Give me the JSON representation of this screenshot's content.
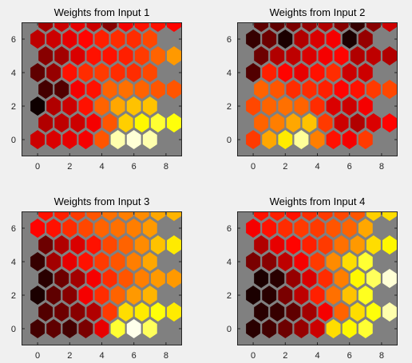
{
  "window": {
    "background": "#f0f0f0"
  },
  "chart_data": [
    {
      "type": "heatmap",
      "title": "Weights from Input 1",
      "xlabel": "",
      "ylabel": "",
      "xlim": [
        -1,
        9
      ],
      "ylim": [
        -1,
        7
      ],
      "xticks": [
        "0",
        "2",
        "4",
        "6",
        "8"
      ],
      "yticks": [
        "0",
        "2",
        "4",
        "6"
      ],
      "grid": false,
      "axes_background": "#808080",
      "colormap": "hot",
      "cells": [
        [
          0.3,
          0.32,
          0.34,
          0.36,
          0.5,
          0.92,
          0.96,
          0.92
        ],
        [
          0.26,
          0.28,
          0.3,
          0.36,
          0.5,
          0.68,
          0.74,
          0.8,
          0.76
        ],
        [
          0.02,
          0.26,
          0.3,
          0.4,
          0.52,
          0.62,
          0.66,
          0.66
        ],
        [
          0.1,
          0.12,
          0.36,
          0.4,
          0.52,
          0.54,
          0.52,
          0.5,
          0.5
        ],
        [
          0.14,
          0.22,
          0.4,
          0.44,
          0.46,
          0.44,
          0.44,
          0.48
        ],
        [
          0.2,
          0.24,
          0.32,
          0.4,
          0.4,
          0.42,
          0.46,
          0.52,
          0.6
        ],
        [
          0.28,
          0.3,
          0.34,
          0.38,
          0.42,
          0.44,
          0.44,
          0.48
        ],
        [
          0.24,
          0.3,
          0.34,
          0.3,
          0.2,
          0.36,
          0.4,
          0.4,
          0.38
        ]
      ]
    },
    {
      "type": "heatmap",
      "title": "Weights from Input 2",
      "xlabel": "",
      "ylabel": "",
      "xlim": [
        -1,
        9
      ],
      "ylim": [
        -1,
        7
      ],
      "xticks": [
        "0",
        "2",
        "4",
        "6",
        "8"
      ],
      "yticks": [
        "0",
        "2",
        "4",
        "6"
      ],
      "grid": false,
      "axes_background": "#808080",
      "colormap": "hot",
      "cells": [
        [
          0.46,
          0.62,
          0.72,
          0.9,
          0.56,
          0.4,
          0.36,
          0.46
        ],
        [
          0.52,
          0.56,
          0.62,
          0.66,
          0.46,
          0.3,
          0.26,
          0.32,
          0.38
        ],
        [
          0.48,
          0.52,
          0.54,
          0.52,
          0.44,
          0.32,
          0.3,
          0.36
        ],
        [
          0.52,
          0.5,
          0.44,
          0.44,
          0.42,
          0.38,
          0.4,
          0.46,
          0.48
        ],
        [
          0.12,
          0.42,
          0.38,
          0.34,
          0.4,
          0.44,
          0.3,
          0.3
        ],
        [
          0.16,
          0.26,
          0.28,
          0.32,
          0.36,
          0.38,
          0.26,
          0.28,
          0.26
        ],
        [
          0.08,
          0.16,
          0.04,
          0.26,
          0.32,
          0.36,
          0.04,
          0.22
        ],
        [
          0.14,
          0.14,
          0.18,
          0.22,
          0.26,
          0.2,
          0.08,
          0.2,
          0.3
        ]
      ]
    },
    {
      "type": "heatmap",
      "title": "Weights from Input 3",
      "xlabel": "",
      "ylabel": "",
      "xlim": [
        -1,
        9
      ],
      "ylim": [
        -1,
        7
      ],
      "xticks": [
        "0",
        "2",
        "4",
        "6",
        "8"
      ],
      "yticks": [
        "0",
        "2",
        "4",
        "6"
      ],
      "grid": false,
      "axes_background": "#808080",
      "colormap": "hot",
      "cells": [
        [
          0.1,
          0.14,
          0.1,
          0.18,
          0.34,
          0.8,
          0.98,
          0.84
        ],
        [
          0.12,
          0.16,
          0.2,
          0.26,
          0.46,
          0.7,
          0.72,
          0.76,
          0.72
        ],
        [
          0.04,
          0.14,
          0.2,
          0.36,
          0.44,
          0.52,
          0.6,
          0.64
        ],
        [
          0.06,
          0.16,
          0.24,
          0.36,
          0.44,
          0.5,
          0.56,
          0.6,
          0.6
        ],
        [
          0.08,
          0.24,
          0.34,
          0.4,
          0.46,
          0.5,
          0.56,
          0.62
        ],
        [
          0.16,
          0.26,
          0.32,
          0.4,
          0.48,
          0.52,
          0.58,
          0.66,
          0.72
        ],
        [
          0.38,
          0.4,
          0.44,
          0.48,
          0.52,
          0.54,
          0.56,
          0.6
        ],
        [
          0.4,
          0.42,
          0.46,
          0.5,
          0.54,
          0.56,
          0.58,
          0.62,
          0.64
        ]
      ]
    },
    {
      "type": "heatmap",
      "title": "Weights from Input 4",
      "xlabel": "",
      "ylabel": "",
      "xlim": [
        -1,
        9
      ],
      "ylim": [
        -1,
        7
      ],
      "xticks": [
        "0",
        "2",
        "4",
        "6",
        "8"
      ],
      "yticks": [
        "0",
        "2",
        "4",
        "6"
      ],
      "grid": false,
      "axes_background": "#808080",
      "colormap": "hot",
      "cells": [
        [
          0.06,
          0.1,
          0.16,
          0.22,
          0.3,
          0.7,
          0.74,
          0.8
        ],
        [
          0.06,
          0.08,
          0.14,
          0.24,
          0.36,
          0.52,
          0.7,
          0.76,
          0.92
        ],
        [
          0.04,
          0.06,
          0.18,
          0.28,
          0.42,
          0.54,
          0.66,
          0.78
        ],
        [
          0.04,
          0.06,
          0.22,
          0.32,
          0.44,
          0.56,
          0.74,
          0.84,
          0.96
        ],
        [
          0.18,
          0.2,
          0.28,
          0.36,
          0.46,
          0.58,
          0.7,
          0.8
        ],
        [
          0.26,
          0.34,
          0.38,
          0.42,
          0.46,
          0.54,
          0.6,
          0.7,
          0.74
        ],
        [
          0.36,
          0.4,
          0.44,
          0.46,
          0.46,
          0.5,
          0.52,
          0.62
        ],
        [
          0.4,
          0.42,
          0.4,
          0.44,
          0.46,
          0.48,
          0.5,
          0.68,
          0.7
        ]
      ]
    }
  ]
}
